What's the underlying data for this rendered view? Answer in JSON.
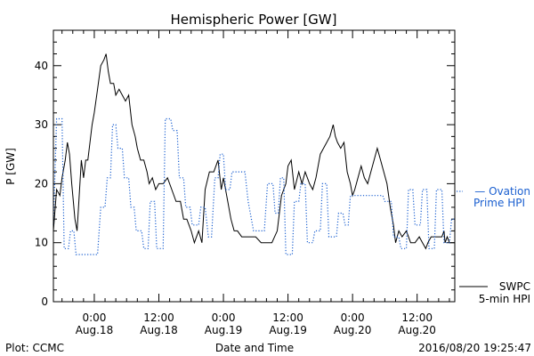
{
  "chart_data": {
    "type": "line",
    "title": "Hemispheric Power [GW]",
    "ylabel": "P [GW]",
    "xlabel": "Date and Time",
    "ylim": [
      0,
      46
    ],
    "xlim": [
      -3.8,
      33.5
    ],
    "y_ticks": [
      0,
      10,
      20,
      30,
      40
    ],
    "x_ticks": [
      {
        "x": 0,
        "line1": "0:00",
        "line2": "Aug.18"
      },
      {
        "x": 6,
        "line1": "12:00",
        "line2": "Aug.18"
      },
      {
        "x": 12,
        "line1": "0:00",
        "line2": "Aug.19"
      },
      {
        "x": 18,
        "line1": "12:00",
        "line2": "Aug.19"
      },
      {
        "x": 24,
        "line1": "0:00",
        "line2": "Aug.20"
      },
      {
        "x": 30,
        "line1": "12:00",
        "line2": "Aug.20"
      }
    ],
    "x_unit": "x = hours since 2016-08-18 00:00 (tick scale: 6 hours per major tick)",
    "series": [
      {
        "name": "SWPC 5-min HPI",
        "label_lines": [
          "SWPC",
          "5-min HPI"
        ],
        "color": "#000000",
        "style": "solid",
        "points": [
          [
            -3.8,
            12
          ],
          [
            -3.5,
            19
          ],
          [
            -3.2,
            18
          ],
          [
            -3.0,
            21
          ],
          [
            -2.7,
            24
          ],
          [
            -2.5,
            27
          ],
          [
            -2.3,
            25
          ],
          [
            -2.1,
            20
          ],
          [
            -1.8,
            14
          ],
          [
            -1.6,
            12
          ],
          [
            -1.4,
            18
          ],
          [
            -1.2,
            24
          ],
          [
            -1.0,
            21
          ],
          [
            -0.8,
            24
          ],
          [
            -0.6,
            24
          ],
          [
            -0.4,
            27
          ],
          [
            -0.2,
            30
          ],
          [
            0.0,
            32
          ],
          [
            0.3,
            36
          ],
          [
            0.6,
            40
          ],
          [
            0.9,
            41
          ],
          [
            1.1,
            42
          ],
          [
            1.3,
            39
          ],
          [
            1.5,
            37
          ],
          [
            1.8,
            37
          ],
          [
            2.0,
            35
          ],
          [
            2.3,
            36
          ],
          [
            2.6,
            35
          ],
          [
            2.9,
            34
          ],
          [
            3.2,
            35
          ],
          [
            3.5,
            30
          ],
          [
            3.8,
            28
          ],
          [
            4.0,
            26
          ],
          [
            4.3,
            24
          ],
          [
            4.6,
            24
          ],
          [
            4.9,
            22
          ],
          [
            5.1,
            20
          ],
          [
            5.4,
            21
          ],
          [
            5.7,
            19
          ],
          [
            6.0,
            20
          ],
          [
            6.4,
            20
          ],
          [
            6.8,
            21
          ],
          [
            7.2,
            19
          ],
          [
            7.6,
            17
          ],
          [
            8.0,
            17
          ],
          [
            8.3,
            14
          ],
          [
            8.6,
            14
          ],
          [
            9.0,
            12
          ],
          [
            9.3,
            10
          ],
          [
            9.7,
            12
          ],
          [
            10.0,
            10
          ],
          [
            10.3,
            19
          ],
          [
            10.7,
            22
          ],
          [
            11.1,
            22
          ],
          [
            11.5,
            24
          ],
          [
            11.8,
            19
          ],
          [
            12.0,
            21
          ],
          [
            12.4,
            17
          ],
          [
            12.7,
            14
          ],
          [
            13.0,
            12
          ],
          [
            13.3,
            12
          ],
          [
            13.7,
            11
          ],
          [
            14.0,
            11
          ],
          [
            14.5,
            11
          ],
          [
            15.0,
            11
          ],
          [
            15.5,
            10
          ],
          [
            16.0,
            10
          ],
          [
            16.5,
            10
          ],
          [
            17.0,
            12
          ],
          [
            17.4,
            18
          ],
          [
            17.8,
            20
          ],
          [
            18.0,
            23
          ],
          [
            18.3,
            24
          ],
          [
            18.6,
            19
          ],
          [
            19.0,
            22
          ],
          [
            19.3,
            20
          ],
          [
            19.6,
            22
          ],
          [
            20.0,
            20
          ],
          [
            20.3,
            19
          ],
          [
            20.6,
            21
          ],
          [
            21.0,
            25
          ],
          [
            21.3,
            26
          ],
          [
            21.6,
            27
          ],
          [
            21.9,
            28
          ],
          [
            22.2,
            30
          ],
          [
            22.4,
            28
          ],
          [
            22.6,
            27
          ],
          [
            22.9,
            26
          ],
          [
            23.2,
            27
          ],
          [
            23.5,
            22
          ],
          [
            23.8,
            20
          ],
          [
            24.0,
            18
          ],
          [
            24.2,
            19
          ],
          [
            24.5,
            21
          ],
          [
            24.8,
            23
          ],
          [
            25.1,
            21
          ],
          [
            25.4,
            20
          ],
          [
            25.7,
            22
          ],
          [
            26.0,
            24
          ],
          [
            26.3,
            26
          ],
          [
            26.6,
            24
          ],
          [
            26.9,
            22
          ],
          [
            27.2,
            20
          ],
          [
            27.5,
            16
          ],
          [
            27.8,
            13
          ],
          [
            28.0,
            10
          ],
          [
            28.3,
            12
          ],
          [
            28.6,
            11
          ],
          [
            29.0,
            12
          ],
          [
            29.4,
            10
          ],
          [
            29.8,
            10
          ],
          [
            30.2,
            11
          ],
          [
            30.5,
            10
          ],
          [
            30.8,
            9
          ],
          [
            31.0,
            10
          ],
          [
            31.3,
            11
          ],
          [
            31.6,
            11
          ],
          [
            32.0,
            11
          ],
          [
            32.3,
            11
          ],
          [
            32.5,
            12
          ],
          [
            32.6,
            10
          ],
          [
            32.8,
            11
          ],
          [
            33.0,
            10
          ],
          [
            33.5,
            10
          ]
        ]
      },
      {
        "name": "Ovation Prime HPI",
        "label_lines": [
          "— Ovation",
          "Prime HPI"
        ],
        "color": "#1a5fd0",
        "style": "dotted",
        "points": [
          [
            -3.8,
            13
          ],
          [
            -3.5,
            31
          ],
          [
            -3.0,
            31
          ],
          [
            -2.8,
            9
          ],
          [
            -2.4,
            9
          ],
          [
            -2.2,
            12
          ],
          [
            -1.9,
            12
          ],
          [
            -1.7,
            8
          ],
          [
            -0.6,
            8
          ],
          [
            -0.4,
            8
          ],
          [
            0.3,
            8
          ],
          [
            0.6,
            16
          ],
          [
            1.0,
            16
          ],
          [
            1.2,
            21
          ],
          [
            1.5,
            21
          ],
          [
            1.7,
            30
          ],
          [
            2.0,
            30
          ],
          [
            2.2,
            26
          ],
          [
            2.6,
            26
          ],
          [
            2.8,
            21
          ],
          [
            3.2,
            21
          ],
          [
            3.4,
            16
          ],
          [
            3.7,
            16
          ],
          [
            3.9,
            12
          ],
          [
            4.4,
            12
          ],
          [
            4.6,
            9
          ],
          [
            5.0,
            9
          ],
          [
            5.2,
            17
          ],
          [
            5.6,
            17
          ],
          [
            5.8,
            9
          ],
          [
            6.4,
            9
          ],
          [
            6.6,
            31
          ],
          [
            7.1,
            31
          ],
          [
            7.3,
            29
          ],
          [
            7.7,
            29
          ],
          [
            7.9,
            21
          ],
          [
            8.3,
            21
          ],
          [
            8.5,
            16
          ],
          [
            8.9,
            16
          ],
          [
            9.1,
            13
          ],
          [
            9.7,
            13
          ],
          [
            9.9,
            16
          ],
          [
            10.3,
            16
          ],
          [
            10.6,
            11
          ],
          [
            10.9,
            11
          ],
          [
            11.2,
            21
          ],
          [
            11.5,
            21
          ],
          [
            11.7,
            25
          ],
          [
            12.0,
            25
          ],
          [
            12.2,
            19
          ],
          [
            12.6,
            19
          ],
          [
            12.8,
            22
          ],
          [
            14.0,
            22
          ],
          [
            14.3,
            17
          ],
          [
            14.8,
            12
          ],
          [
            15.8,
            12
          ],
          [
            16.1,
            20
          ],
          [
            16.6,
            20
          ],
          [
            16.8,
            15
          ],
          [
            17.1,
            15
          ],
          [
            17.3,
            21
          ],
          [
            17.6,
            21
          ],
          [
            17.8,
            8
          ],
          [
            18.4,
            8
          ],
          [
            18.6,
            17
          ],
          [
            19.0,
            17
          ],
          [
            19.2,
            20
          ],
          [
            19.6,
            20
          ],
          [
            19.8,
            10
          ],
          [
            20.3,
            10
          ],
          [
            20.5,
            12
          ],
          [
            21.0,
            12
          ],
          [
            21.2,
            20
          ],
          [
            21.6,
            20
          ],
          [
            21.8,
            11
          ],
          [
            22.5,
            11
          ],
          [
            22.7,
            15
          ],
          [
            23.1,
            15
          ],
          [
            23.3,
            13
          ],
          [
            23.6,
            13
          ],
          [
            23.8,
            18
          ],
          [
            26.8,
            18
          ],
          [
            27.0,
            17
          ],
          [
            27.6,
            17
          ],
          [
            27.8,
            11
          ],
          [
            28.3,
            11
          ],
          [
            28.5,
            9
          ],
          [
            29.0,
            9
          ],
          [
            29.2,
            19
          ],
          [
            29.6,
            19
          ],
          [
            29.8,
            13
          ],
          [
            30.3,
            13
          ],
          [
            30.5,
            19
          ],
          [
            30.9,
            19
          ],
          [
            31.1,
            9
          ],
          [
            31.6,
            9
          ],
          [
            31.8,
            19
          ],
          [
            32.3,
            19
          ],
          [
            32.5,
            10
          ],
          [
            33.0,
            10
          ],
          [
            33.2,
            14
          ],
          [
            33.5,
            14
          ]
        ]
      }
    ]
  },
  "footer": {
    "plot_credit": "Plot: CCMC",
    "timestamp": "2016/08/20 19:25:47"
  }
}
